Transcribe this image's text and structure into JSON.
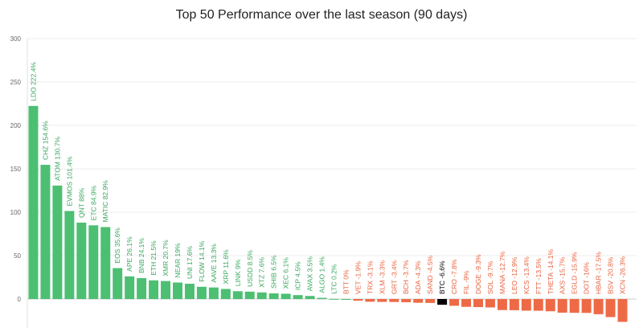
{
  "chart_data": {
    "type": "bar",
    "title": "Top 50 Performance over the last season (90 days)",
    "xlabel": "",
    "ylabel": "",
    "ylim": [
      -30,
      300
    ],
    "yticks": [
      0,
      50,
      100,
      150,
      200,
      250,
      300
    ],
    "grid": true,
    "colors": {
      "positive": "#4cbf73",
      "negative": "#ee6a47",
      "highlight": "#000000"
    },
    "highlight_category": "BTC",
    "categories": [
      "LDO",
      "CHZ",
      "ATOM",
      "EVMOS",
      "QNT",
      "ETC",
      "MATIC",
      "EOS",
      "APE",
      "BNB",
      "ETH",
      "XMR",
      "NEAR",
      "UNI",
      "FLOW",
      "AAVE",
      "XRP",
      "LINK",
      "USDD",
      "XTZ",
      "SHIB",
      "XEC",
      "ICP",
      "AVAX",
      "ALGO",
      "LTC",
      "BTT",
      "VET",
      "TRX",
      "XLM",
      "GRT",
      "BCH",
      "ADA",
      "SAND",
      "BTC",
      "CRO",
      "FIL",
      "DOGE",
      "SOL",
      "MANA",
      "LEO",
      "KCS",
      "FTT",
      "THETA",
      "AXS",
      "EGLD",
      "DOT",
      "HBAR",
      "BSV",
      "XCN"
    ],
    "values": [
      222.4,
      154.6,
      130.7,
      101.4,
      88,
      84.9,
      82.9,
      35.6,
      26.1,
      24.1,
      21.5,
      20.7,
      19,
      17.6,
      14.1,
      13.3,
      11.6,
      9,
      8.5,
      7.6,
      6.5,
      6.1,
      4.5,
      3.5,
      1.4,
      0.2,
      0,
      -1.9,
      -3.1,
      -3.3,
      -3.4,
      -3.7,
      -4.3,
      -4.5,
      -6.6,
      -7.8,
      -9,
      -9.3,
      -9.7,
      -12.7,
      -12.9,
      -13.4,
      -13.5,
      -14.1,
      -15.7,
      -15.9,
      -16,
      -17.5,
      -20.8,
      -26.3
    ],
    "labels": [
      "LDO 222.4%",
      "CHZ 154.6%",
      "ATOM 130.7%",
      "EVMOS 101.4%",
      "QNT 88%",
      "ETC 84.9%",
      "MATIC 82.9%",
      "EOS 35.6%",
      "APE 26.1%",
      "BNB 24.1%",
      "ETH 21.5%",
      "XMR 20.7%",
      "NEAR 19%",
      "UNI 17.6%",
      "FLOW 14.1%",
      "AAVE 13.3%",
      "XRP 11.6%",
      "LINK 9%",
      "USDD 8.5%",
      "XTZ 7.6%",
      "SHIB 6.5%",
      "XEC 6.1%",
      "ICP 4.5%",
      "AVAX 3.5%",
      "ALGO 1.4%",
      "LTC 0.2%",
      "BTT 0%",
      "VET -1.9%",
      "TRX -3.1%",
      "XLM -3.3%",
      "GRT -3.4%",
      "BCH -3.7%",
      "ADA -4.3%",
      "SAND -4.5%",
      "BTC -6.6%",
      "CRO -7.8%",
      "FIL -9%",
      "DOGE -9.3%",
      "SOL -9.7%",
      "MANA -12.7%",
      "LEO -12.9%",
      "KCS -13.4%",
      "FTT -13.5%",
      "THETA -14.1%",
      "AXS -15.7%",
      "EGLD -15.9%",
      "DOT -16%",
      "HBAR -17.5%",
      "BSV -20.8%",
      "XCN -26.3%"
    ]
  }
}
